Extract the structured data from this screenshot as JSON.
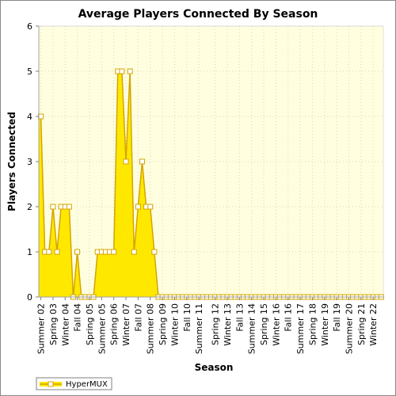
{
  "chart_data": {
    "type": "area",
    "title": "Average Players Connected By Season",
    "xlabel": "Season",
    "ylabel": "Players Connected",
    "ylim": [
      0,
      6
    ],
    "yticks": [
      0,
      1,
      2,
      3,
      4,
      5,
      6
    ],
    "grid": true,
    "legend_position": "bottom-left",
    "colors": {
      "fill": "#ffe800",
      "line": "#d4a400",
      "marker_fill": "#ffffff",
      "plot_bg": "#ffffe0",
      "grid": "#d8d8b8"
    },
    "x_tick_labels": [
      "Summer 02",
      "Spring 03",
      "Winter 04",
      "Fall 04",
      "Spring 05",
      "Summer 05",
      "Spring 06",
      "Winter 07",
      "Fall 07",
      "Summer 08",
      "Spring 09",
      "Winter 10",
      "Fall 10",
      "Summer 11",
      "Spring 12",
      "Winter 13",
      "Fall 13",
      "Summer 14",
      "Spring 15",
      "Winter 16",
      "Fall 16",
      "Summer 17",
      "Spring 18",
      "Winter 19",
      "Fall 19",
      "Summer 20",
      "Spring 21",
      "Winter 22"
    ],
    "series": [
      {
        "name": "HyperMUX",
        "values": [
          4,
          1,
          1,
          2,
          1,
          2,
          2,
          2,
          0,
          1,
          0,
          0,
          0,
          0,
          1,
          1,
          1,
          1,
          1,
          5,
          5,
          3,
          5,
          1,
          2,
          3,
          2,
          2,
          1,
          0,
          0,
          0,
          0,
          0,
          0,
          0,
          0,
          0,
          0,
          0,
          0,
          0,
          0,
          0,
          0,
          0,
          0,
          0,
          0,
          0,
          0,
          0,
          0,
          0,
          0,
          0,
          0,
          0,
          0,
          0,
          0,
          0,
          0,
          0,
          0,
          0,
          0,
          0,
          0,
          0,
          0,
          0,
          0,
          0,
          0,
          0,
          0,
          0,
          0,
          0,
          0,
          0,
          0,
          0,
          0
        ]
      }
    ]
  }
}
